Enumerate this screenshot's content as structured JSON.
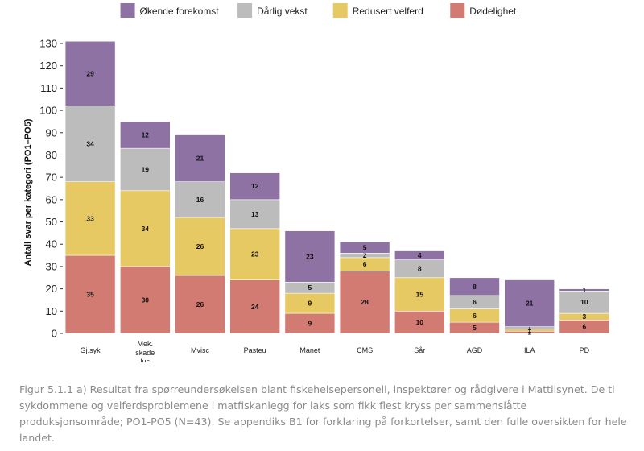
{
  "chart_data": {
    "type": "bar",
    "stacked": true,
    "ylabel": "Antall svar per kategori (PO1–PO5)",
    "xlabel": "",
    "ylim": [
      0,
      130
    ],
    "yticks": [
      0,
      10,
      20,
      30,
      40,
      50,
      60,
      70,
      80,
      90,
      100,
      110,
      120,
      130
    ],
    "grid": false,
    "legend_position": "top",
    "categories": [
      "Gj.syk",
      "Mek. skade lus",
      "Mvisc",
      "Pasteu",
      "Manet",
      "CMS",
      "Sår",
      "AGD",
      "ILA",
      "PD"
    ],
    "category_lines": [
      [
        "Gj.syk"
      ],
      [
        "Mek.",
        "skade",
        "lus"
      ],
      [
        "Mvisc"
      ],
      [
        "Pasteu"
      ],
      [
        "Manet"
      ],
      [
        "CMS"
      ],
      [
        "Sår"
      ],
      [
        "AGD"
      ],
      [
        "ILA"
      ],
      [
        "PD"
      ]
    ],
    "series": [
      {
        "name": "Dødelighet",
        "color": "#d17b72",
        "values": [
          35,
          30,
          26,
          24,
          9,
          28,
          10,
          5,
          1,
          6
        ],
        "labels": [
          "35",
          "30",
          "26",
          "24",
          "9",
          "28",
          "10",
          "5",
          "1",
          "6"
        ]
      },
      {
        "name": "Redusert velferd",
        "color": "#e6c963",
        "values": [
          33,
          34,
          26,
          23,
          9,
          6,
          15,
          6,
          1,
          3
        ],
        "labels": [
          "33",
          "34",
          "26",
          "23",
          "9",
          "6",
          "15",
          "6",
          "1",
          "3"
        ]
      },
      {
        "name": "Dårlig vekst",
        "color": "#bcbcbc",
        "values": [
          34,
          19,
          16,
          13,
          5,
          2,
          8,
          6,
          1,
          10
        ],
        "labels": [
          "34",
          "19",
          "16",
          "13",
          "5",
          "2",
          "8",
          "6",
          "1",
          "10"
        ]
      },
      {
        "name": "Økende forekomst",
        "color": "#8f72a4",
        "values": [
          29,
          12,
          21,
          12,
          23,
          5,
          4,
          8,
          21,
          1
        ],
        "labels": [
          "29",
          "12",
          "21",
          "12",
          "23",
          "5",
          "4",
          "8",
          "21",
          "1"
        ]
      }
    ],
    "legend_order": [
      "Økende forekomst",
      "Dårlig vekst",
      "Redusert velferd",
      "Dødelighet"
    ]
  },
  "caption": {
    "lines": [
      "Figur 5.1.1 a) Resultat fra spørreundersøkelsen blant fiskehelsepersonell, inspektører og rådgivere i Mattilsynet. De ti",
      "sykdommene og velferdsproblemene i matfiskanlegg for laks som fikk flest kryss per sammenslåtte",
      "produksjonsområde; PO1-PO5 (N=43). Se appendiks B1 for forklaring på forkortelser, samt den fulle oversikten for hele",
      "landet."
    ]
  }
}
